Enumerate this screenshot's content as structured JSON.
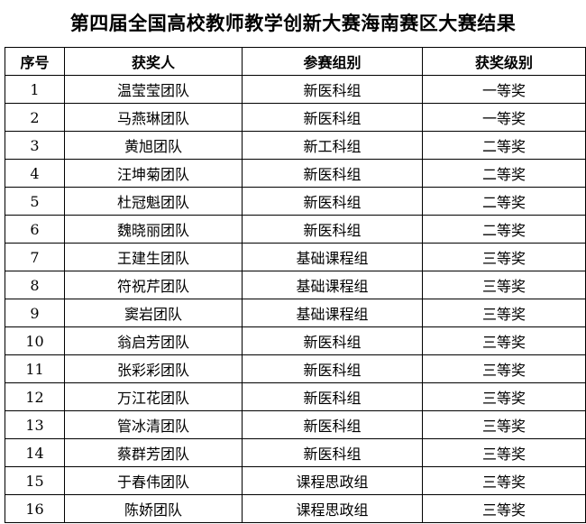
{
  "title": "第四届全国高校教师教学创新大赛海南赛区大赛结果",
  "table": {
    "headers": {
      "no": "序号",
      "winner": "获奖人",
      "group": "参赛组别",
      "award": "获奖级别"
    },
    "rows": [
      {
        "no": "1",
        "winner": "温莹莹团队",
        "group": "新医科组",
        "award": "一等奖"
      },
      {
        "no": "2",
        "winner": "马燕琳团队",
        "group": "新医科组",
        "award": "一等奖"
      },
      {
        "no": "3",
        "winner": "黄旭团队",
        "group": "新工科组",
        "award": "二等奖"
      },
      {
        "no": "4",
        "winner": "汪坤菊团队",
        "group": "新医科组",
        "award": "二等奖"
      },
      {
        "no": "5",
        "winner": "杜冠魁团队",
        "group": "新医科组",
        "award": "二等奖"
      },
      {
        "no": "6",
        "winner": "魏晓丽团队",
        "group": "新医科组",
        "award": "二等奖"
      },
      {
        "no": "7",
        "winner": "王建生团队",
        "group": "基础课程组",
        "award": "三等奖"
      },
      {
        "no": "8",
        "winner": "符祝芹团队",
        "group": "基础课程组",
        "award": "三等奖"
      },
      {
        "no": "9",
        "winner": "窦岩团队",
        "group": "基础课程组",
        "award": "三等奖"
      },
      {
        "no": "10",
        "winner": "翁启芳团队",
        "group": "新医科组",
        "award": "三等奖"
      },
      {
        "no": "11",
        "winner": "张彩彩团队",
        "group": "新医科组",
        "award": "三等奖"
      },
      {
        "no": "12",
        "winner": "万江花团队",
        "group": "新医科组",
        "award": "三等奖"
      },
      {
        "no": "13",
        "winner": "管冰清团队",
        "group": "新医科组",
        "award": "三等奖"
      },
      {
        "no": "14",
        "winner": "蔡群芳团队",
        "group": "新医科组",
        "award": "三等奖"
      },
      {
        "no": "15",
        "winner": "于春伟团队",
        "group": "课程思政组",
        "award": "三等奖"
      },
      {
        "no": "16",
        "winner": "陈娇团队",
        "group": "课程思政组",
        "award": "三等奖"
      }
    ]
  }
}
